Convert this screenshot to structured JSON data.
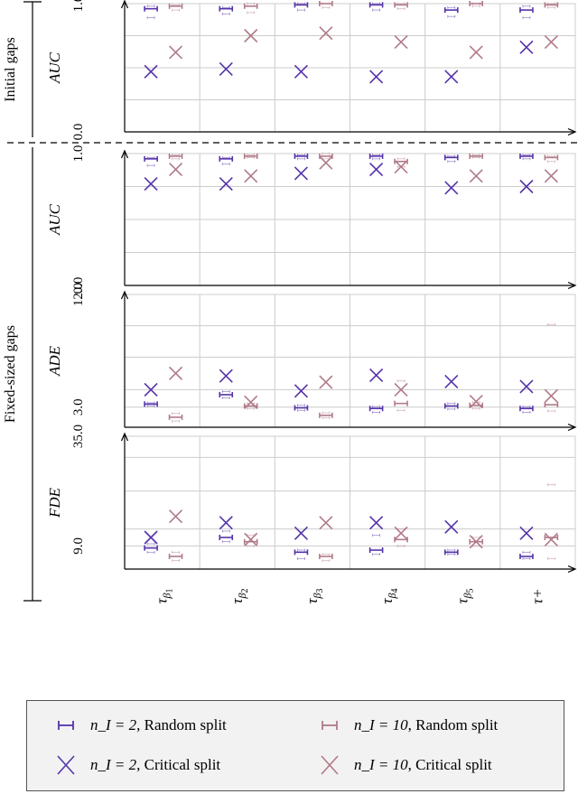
{
  "colors": {
    "n2": "#5533aa",
    "n10": "#b07a88",
    "grid": "#cccccc",
    "axis": "#000000"
  },
  "sections": [
    {
      "label": "Initial gaps"
    },
    {
      "label": "Fixed-sized gaps"
    }
  ],
  "legend": [
    {
      "symbol": "interval",
      "color_key": "n2",
      "math": "n_I = 2",
      "text": ", Random split"
    },
    {
      "symbol": "interval",
      "color_key": "n10",
      "math": "n_I = 10",
      "text": ", Random split"
    },
    {
      "symbol": "cross",
      "color_key": "n2",
      "math": "n_I = 2",
      "text": ", Critical split"
    },
    {
      "symbol": "cross",
      "color_key": "n10",
      "math": "n_I = 10",
      "text": ", Critical split"
    }
  ],
  "chart_data": {
    "type": "scatter",
    "categories": [
      "τβ1",
      "τβ2",
      "τβ3",
      "τβ4",
      "τβ5",
      "τ+"
    ],
    "category_tex": [
      {
        "base": "τ",
        "sub": "β",
        "subsub": "1"
      },
      {
        "base": "τ",
        "sub": "β",
        "subsub": "2"
      },
      {
        "base": "τ",
        "sub": "β",
        "subsub": "3"
      },
      {
        "base": "τ",
        "sub": "β",
        "subsub": "4"
      },
      {
        "base": "τ",
        "sub": "β",
        "subsub": "5"
      },
      {
        "base": "τ+",
        "sub": "",
        "subsub": ""
      }
    ],
    "series": [
      {
        "name": "n_I = 2, Random split",
        "key": "n2r"
      },
      {
        "name": "n_I = 10, Random split",
        "key": "n10r"
      },
      {
        "name": "n_I = 2, Critical split",
        "key": "n2c"
      },
      {
        "name": "n_I = 10, Critical split",
        "key": "n10c"
      }
    ],
    "panels": [
      {
        "ylabel": "AUC",
        "section": 0,
        "ylim": [
          0.0,
          1.0
        ],
        "ytick_labels": [
          "0.0",
          "1.0"
        ],
        "ytick_values": [
          0.0,
          1.0
        ],
        "grid_values": [
          0.25,
          0.5,
          0.75
        ],
        "n2r": [
          [
            0.96,
            0.98,
            0.89
          ],
          [
            0.96,
            0.97,
            0.92
          ],
          [
            0.99,
            1.0,
            0.95
          ],
          [
            0.99,
            1.0,
            0.95
          ],
          [
            0.95,
            0.97,
            0.9
          ],
          [
            0.95,
            0.98,
            0.89
          ]
        ],
        "n10r": [
          [
            0.98,
            0.99,
            0.95
          ],
          [
            0.98,
            1.0,
            0.93
          ],
          [
            1.0,
            1.0,
            0.97
          ],
          [
            0.99,
            1.0,
            0.96
          ],
          [
            1.0,
            1.0,
            0.98
          ],
          [
            0.99,
            1.0,
            0.97
          ]
        ],
        "n2c": [
          0.47,
          0.49,
          0.47,
          0.43,
          0.43,
          0.66
        ],
        "n10c": [
          0.62,
          0.75,
          0.77,
          0.7,
          0.62,
          0.7
        ]
      },
      {
        "ylabel": "AUC",
        "section": 1,
        "ylim": [
          0.0,
          1.0
        ],
        "ytick_labels": [
          "0.0",
          "1.0"
        ],
        "ytick_values": [
          0.0,
          1.0
        ],
        "grid_values": [
          0.25,
          0.5,
          0.75
        ],
        "n2r": [
          [
            0.96,
            0.97,
            0.91
          ],
          [
            0.96,
            0.97,
            0.92
          ],
          [
            0.98,
            0.99,
            0.96
          ],
          [
            0.98,
            0.99,
            0.96
          ],
          [
            0.97,
            0.98,
            0.94
          ],
          [
            0.98,
            0.99,
            0.96
          ]
        ],
        "n10r": [
          [
            0.98,
            0.99,
            0.96
          ],
          [
            0.98,
            0.99,
            0.97
          ],
          [
            0.98,
            1.0,
            0.96
          ],
          [
            0.94,
            0.96,
            0.9
          ],
          [
            0.98,
            0.99,
            0.97
          ],
          [
            0.97,
            0.98,
            0.94
          ]
        ],
        "n2c": [
          0.77,
          0.77,
          0.85,
          0.88,
          0.74,
          0.75
        ],
        "n10c": [
          0.88,
          0.83,
          0.93,
          0.9,
          0.83,
          0.83
        ]
      },
      {
        "ylabel": "ADE",
        "section": 1,
        "ylim": [
          1.4,
          12.0
        ],
        "ytick_labels": [
          "3.0",
          "12.0"
        ],
        "ytick_values": [
          3.0,
          12.0
        ],
        "grid_values": [
          4.4,
          7.0,
          9.5
        ],
        "n2r": [
          [
            3.25,
            3.35,
            3.1
          ],
          [
            4.0,
            4.25,
            3.75
          ],
          [
            2.95,
            3.15,
            2.75
          ],
          [
            2.9,
            3.05,
            2.6
          ],
          [
            3.1,
            3.3,
            2.85
          ],
          [
            2.9,
            3.05,
            2.6
          ]
        ],
        "n10r": [
          [
            2.2,
            2.5,
            1.9
          ],
          [
            3.1,
            3.3,
            2.9
          ],
          [
            2.35,
            2.55,
            2.15
          ],
          [
            3.3,
            5.1,
            2.75
          ],
          [
            3.15,
            3.4,
            2.9
          ],
          [
            3.2,
            9.6,
            2.7
          ]
        ],
        "n2c": [
          4.4,
          5.5,
          4.3,
          5.55,
          5.05,
          4.65
        ],
        "n10c": [
          5.7,
          3.4,
          5.0,
          4.4,
          3.45,
          3.9
        ]
      },
      {
        "ylabel": "FDE",
        "section": 1,
        "ylim": [
          3.5,
          35.0
        ],
        "ytick_labels": [
          "9.0",
          "35.0"
        ],
        "ytick_values": [
          9.0,
          35.0
        ],
        "grid_values": [
          13.0,
          22.0,
          30.0
        ],
        "n2r": [
          [
            8.5,
            9.5,
            7.5
          ],
          [
            11.0,
            12.5,
            10.0
          ],
          [
            7.5,
            8.0,
            6.0
          ],
          [
            8.0,
            11.5,
            7.0
          ],
          [
            7.5,
            8.0,
            7.0
          ],
          [
            6.5,
            7.5,
            6.0
          ]
        ],
        "n10r": [
          [
            6.5,
            7.5,
            5.5
          ],
          [
            10.0,
            11.5,
            9.0
          ],
          [
            6.5,
            7.0,
            5.5
          ],
          [
            10.5,
            13.0,
            9.0
          ],
          [
            10.0,
            11.0,
            9.0
          ],
          [
            11.0,
            23.5,
            6.0
          ]
        ],
        "n2c": [
          11.0,
          14.5,
          12.0,
          14.5,
          13.5,
          12.0
        ],
        "n10c": [
          16.0,
          10.5,
          14.5,
          12.0,
          10.0,
          10.5
        ]
      }
    ]
  }
}
